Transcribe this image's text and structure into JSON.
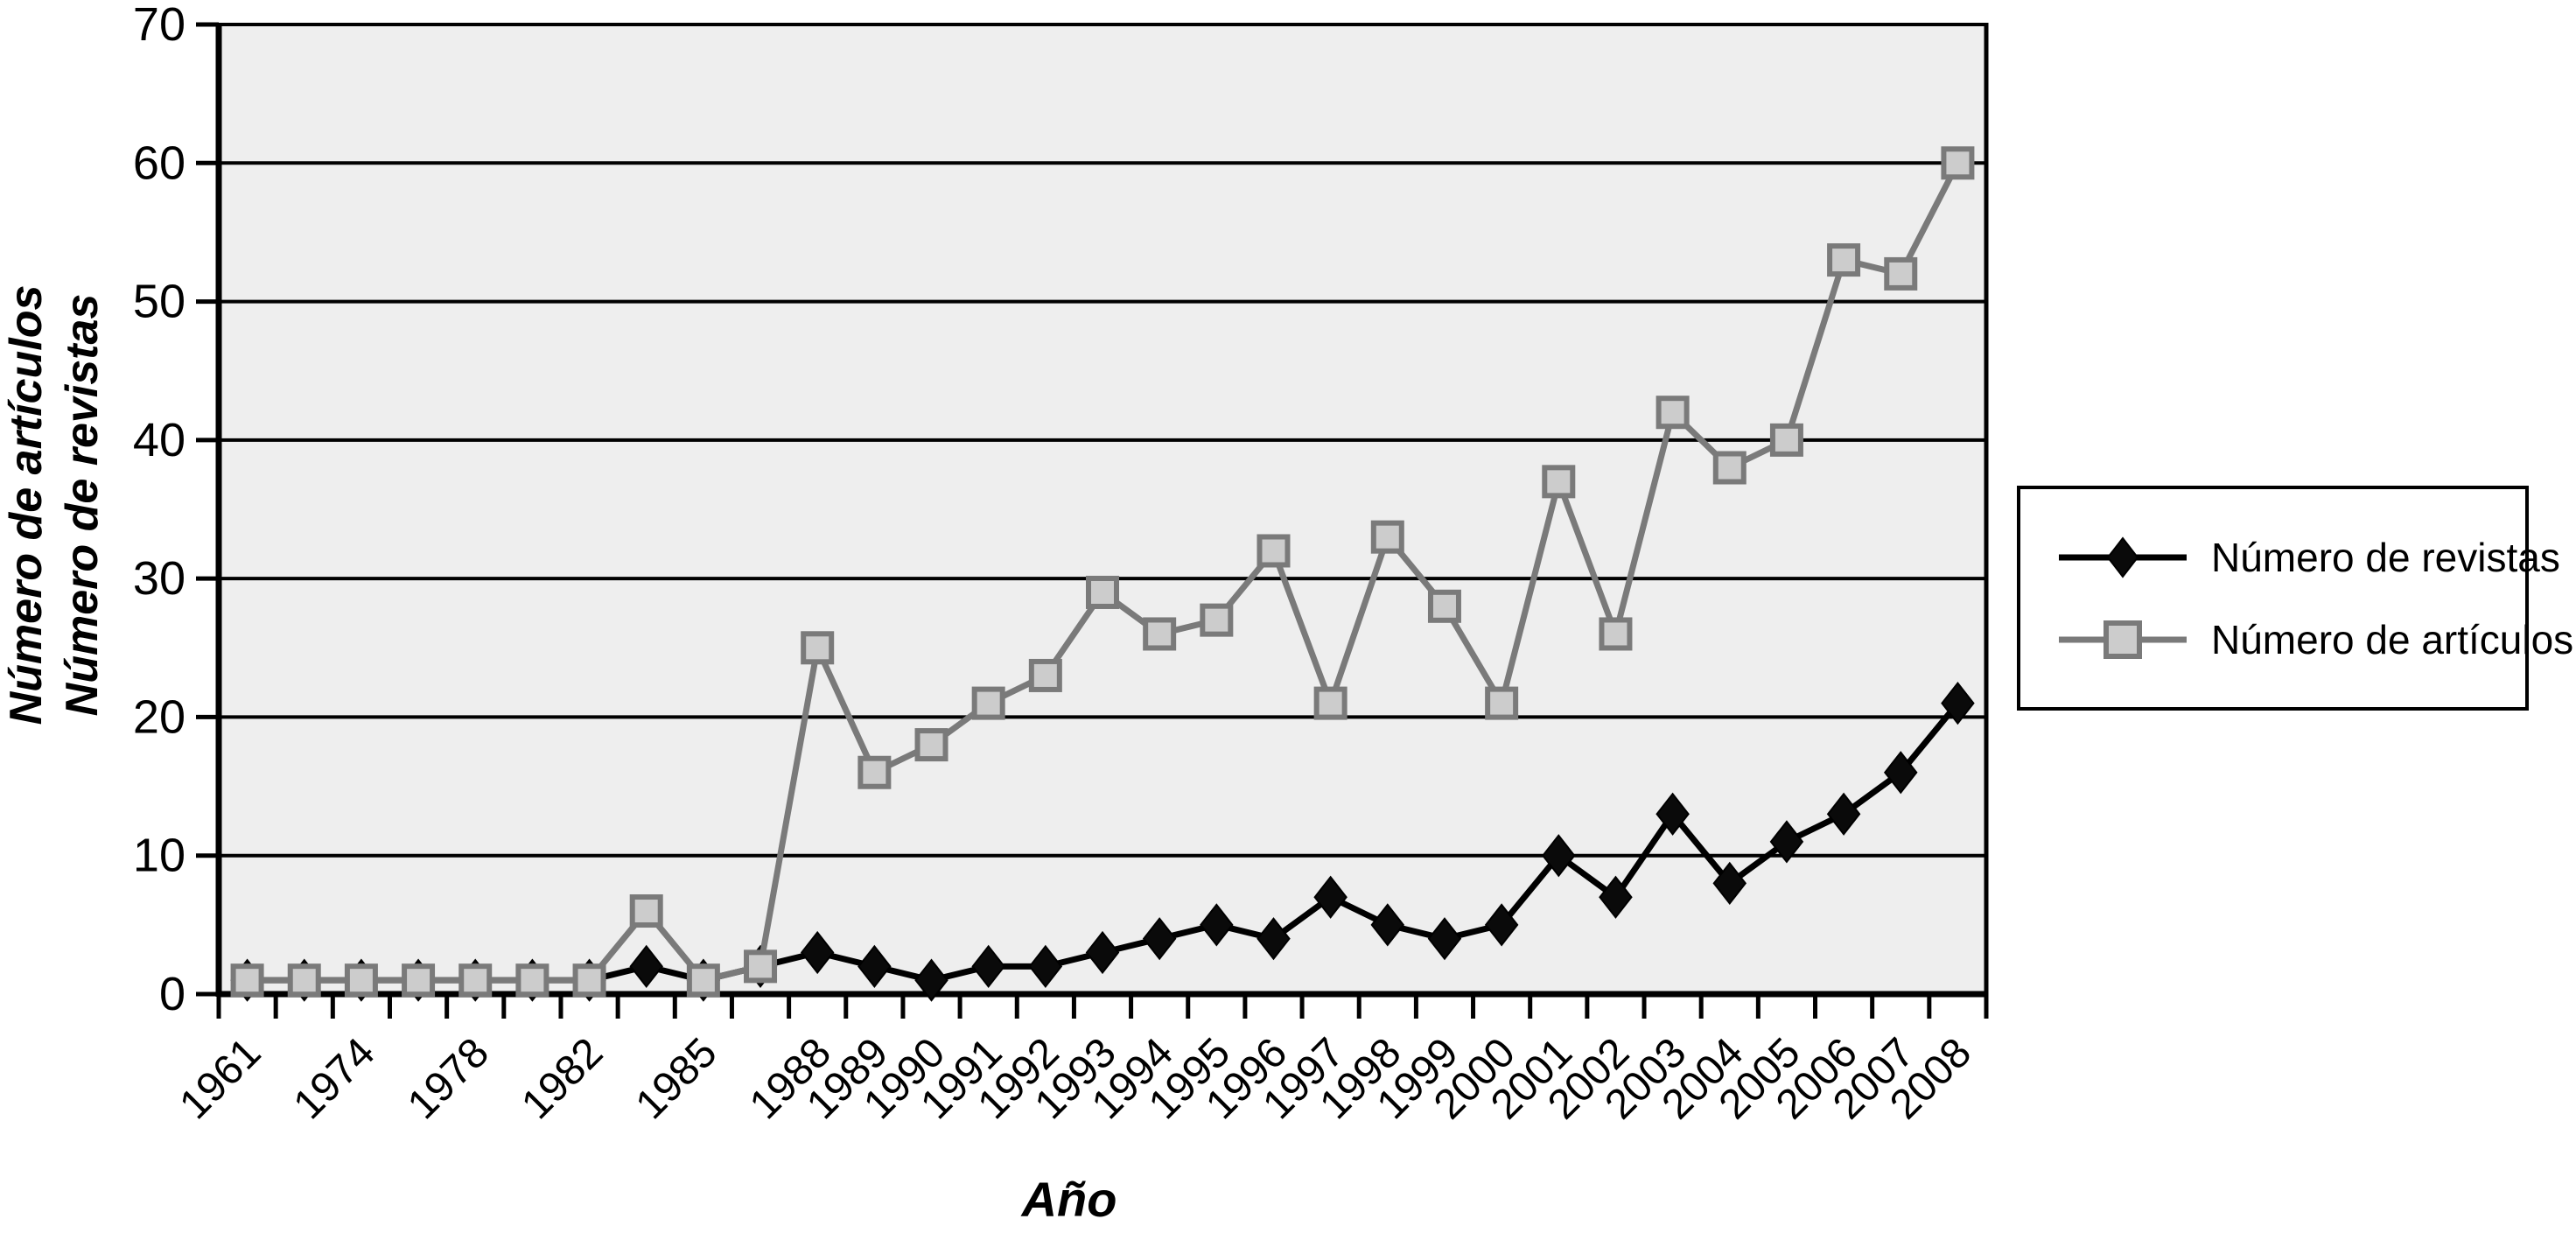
{
  "chart_data": {
    "type": "line",
    "title": "",
    "xlabel": "Año",
    "ylabel_lines": [
      "Número de artículos",
      "Número de revistas"
    ],
    "ylim": [
      0,
      70
    ],
    "yticks": [
      0,
      10,
      20,
      30,
      40,
      50,
      60,
      70
    ],
    "grid": true,
    "plot_bg_color": "#eeeeee",
    "grid_color": "#000000",
    "legend_position": "right-outside",
    "categories": [
      "1961",
      "",
      "1974",
      "",
      "1978",
      "",
      "1982",
      "",
      "1985",
      "",
      "1988",
      "1989",
      "1990",
      "1991",
      "1992",
      "1993",
      "1994",
      "1995",
      "1996",
      "1997",
      "1998",
      "1999",
      "2000",
      "2001",
      "2002",
      "2003",
      "2004",
      "2005",
      "2006",
      "2007",
      "2008"
    ],
    "visible_x_tick_labels": [
      "1961",
      "1974",
      "1978",
      "1982",
      "1985",
      "1988",
      "1990",
      "1992",
      "1994",
      "1996",
      "1998",
      "2000",
      "2002",
      "2004",
      "2006",
      "2008"
    ],
    "series": [
      {
        "name": "Número de revistas",
        "marker": "diamond",
        "line_color": "#000000",
        "marker_fill": "#0a0a0a",
        "marker_stroke": "#000000",
        "values": [
          1,
          1,
          1,
          1,
          1,
          1,
          1,
          2,
          1,
          2,
          3,
          2,
          1,
          2,
          2,
          3,
          4,
          5,
          4,
          7,
          5,
          4,
          5,
          10,
          7,
          13,
          8,
          11,
          13,
          16,
          21
        ]
      },
      {
        "name": "Número de artículos",
        "marker": "square",
        "line_color": "#7a7a7a",
        "marker_fill": "#cccccc",
        "marker_stroke": "#7a7a7a",
        "values": [
          1,
          1,
          1,
          1,
          1,
          1,
          1,
          6,
          1,
          2,
          25,
          16,
          18,
          21,
          23,
          29,
          26,
          27,
          32,
          21,
          33,
          28,
          21,
          37,
          26,
          42,
          38,
          40,
          53,
          52,
          60
        ]
      }
    ]
  }
}
